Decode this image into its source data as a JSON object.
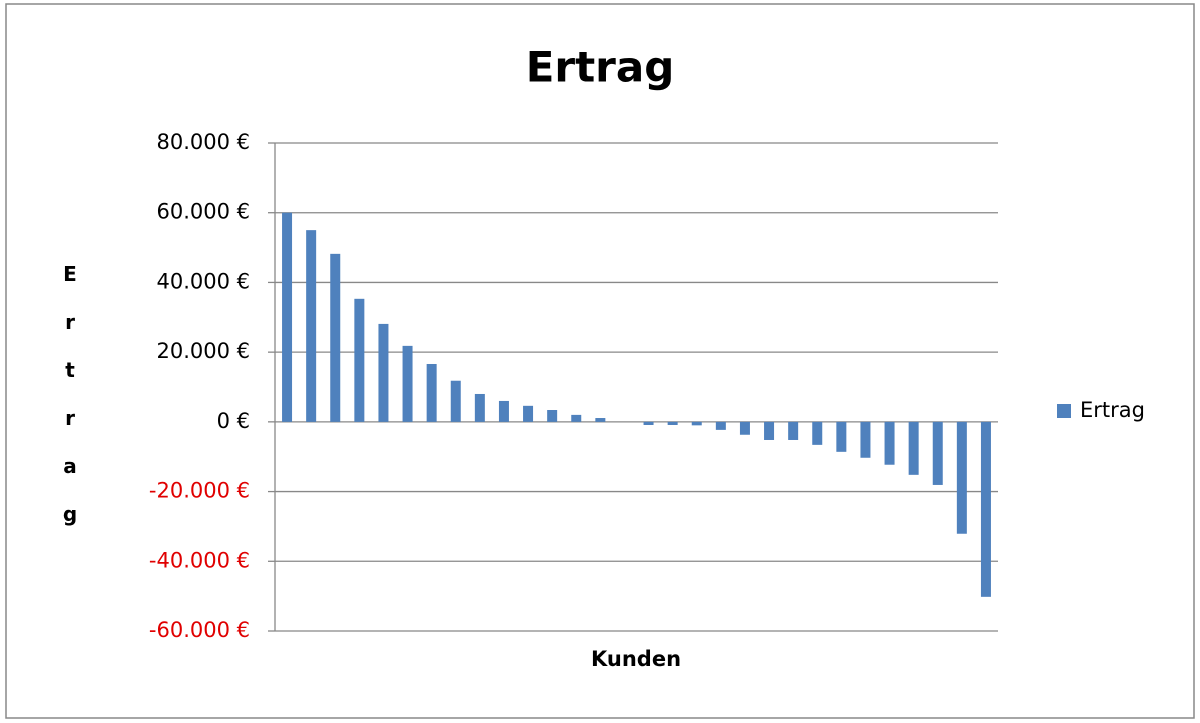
{
  "chart_data": {
    "type": "bar",
    "title": "Ertrag",
    "xlabel": "Kunden",
    "ylabel": "Ertrag",
    "categories": [
      null,
      null,
      null,
      null,
      null,
      null,
      null,
      null,
      null,
      null,
      null,
      null,
      null,
      null,
      null,
      null,
      null,
      null,
      null,
      null,
      null,
      null,
      null,
      null,
      null,
      null,
      null,
      null,
      null,
      null
    ],
    "series": [
      {
        "name": "Ertrag",
        "color": "#4f81bd",
        "values": [
          60000,
          55000,
          48200,
          35300,
          28100,
          21800,
          16600,
          11800,
          8000,
          6000,
          4600,
          3400,
          2000,
          1100,
          0,
          -900,
          -900,
          -1000,
          -2300,
          -3700,
          -5200,
          -5200,
          -6600,
          -8600,
          -10300,
          -12300,
          -15200,
          -18100,
          -32100,
          -50200
        ]
      }
    ],
    "ylim": [
      -60000,
      80000
    ],
    "yticks": [
      {
        "value": -60000,
        "label": "-60.000 €"
      },
      {
        "value": -40000,
        "label": "-40.000 €"
      },
      {
        "value": -20000,
        "label": "-20.000 €"
      },
      {
        "value": 0,
        "label": "0 €"
      },
      {
        "value": 20000,
        "label": "20.000 €"
      },
      {
        "value": 40000,
        "label": "40.000 €"
      },
      {
        "value": 60000,
        "label": "60.000 €"
      },
      {
        "value": 80000,
        "label": "80.000 €"
      }
    ],
    "negative_tick_color": "#e00000",
    "grid": true,
    "legend": "right"
  }
}
